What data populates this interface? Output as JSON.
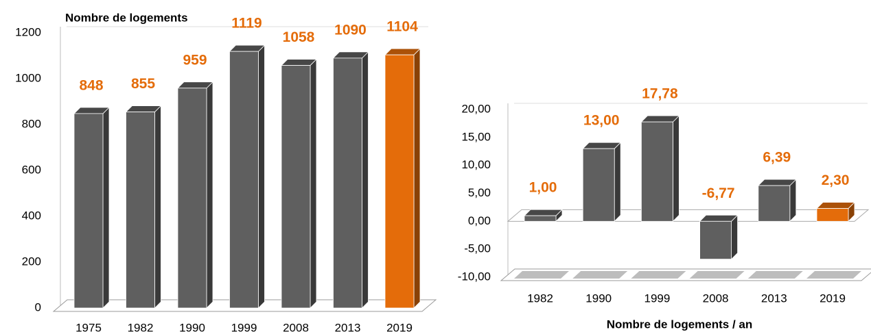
{
  "chart_data": [
    {
      "type": "bar3d",
      "title": "Nombre de logements",
      "categories": [
        "1975",
        "1982",
        "1990",
        "1999",
        "2008",
        "2013",
        "2019"
      ],
      "values": [
        848,
        855,
        959,
        1119,
        1058,
        1090,
        1104
      ],
      "colors": [
        "#5f5f5f",
        "#5f5f5f",
        "#5f5f5f",
        "#5f5f5f",
        "#5f5f5f",
        "#5f5f5f",
        "#e46c0a"
      ],
      "label_color": "#e46c0a",
      "ylim": [
        0,
        1200
      ],
      "yticks": [
        0,
        200,
        400,
        600,
        800,
        1000,
        1200
      ]
    },
    {
      "type": "bar3d",
      "title": "Nombre de logements / an",
      "categories": [
        "1982",
        "1990",
        "1999",
        "2008",
        "2013",
        "2019"
      ],
      "values": [
        1,
        13,
        17.78,
        -6.77,
        6.39,
        2.3
      ],
      "value_labels": [
        "1,00",
        "13,00",
        "17,78",
        "-6,77",
        "6,39",
        "2,30"
      ],
      "colors": [
        "#5f5f5f",
        "#5f5f5f",
        "#5f5f5f",
        "#5f5f5f",
        "#5f5f5f",
        "#e46c0a"
      ],
      "label_color": "#e46c0a",
      "ylim": [
        -10,
        20
      ],
      "yticks": [
        {
          "value": -10,
          "label": "-10,00"
        },
        {
          "value": -5,
          "label": "-5,00"
        },
        {
          "value": 0,
          "label": "0,00"
        },
        {
          "value": 5,
          "label": "5,00"
        },
        {
          "value": 10,
          "label": "10,00"
        },
        {
          "value": 15,
          "label": "15,00"
        },
        {
          "value": 20,
          "label": "20,00"
        }
      ]
    }
  ]
}
